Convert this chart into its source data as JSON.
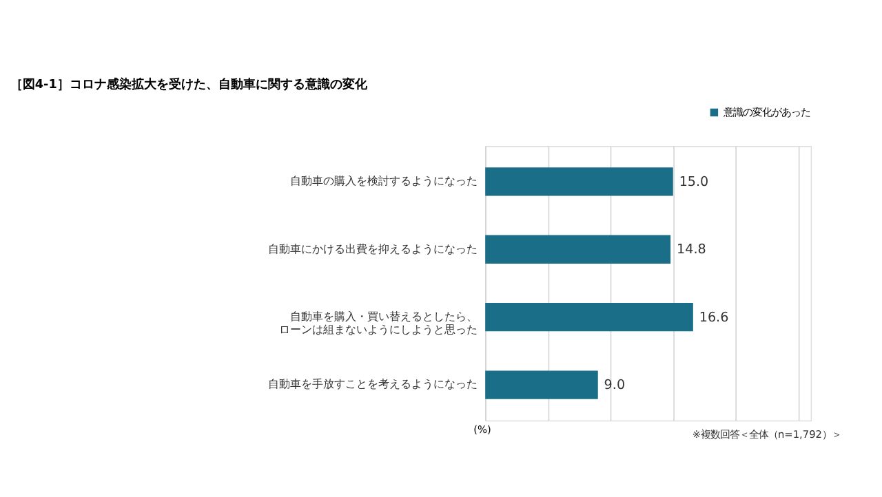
{
  "chart_data": {
    "type": "bar",
    "orientation": "horizontal",
    "title": "［図4-1］コロナ感染拡大を受けた、自動車に関する意識の変化",
    "categories": [
      "自動車の購入を検討するようになった",
      "自動車にかける出費を抑えるようになった",
      "自動車を購入・買い替えるとしたら、ローンは組まないようにしようと思った",
      "自動車を手放すことを考えるようになった"
    ],
    "series": [
      {
        "name": "意識の変化があった",
        "color": "#1a6e88",
        "values": [
          15.0,
          14.8,
          16.6,
          9.0
        ],
        "value_labels": [
          "15.0",
          "14.8",
          "16.6",
          "9.0"
        ]
      }
    ],
    "xlabel": "(%)",
    "annotations": [
      "※複数回答＜全体（n=1,792）＞"
    ],
    "grid": "x",
    "legend": "top right",
    "tick_labels": "y"
  }
}
